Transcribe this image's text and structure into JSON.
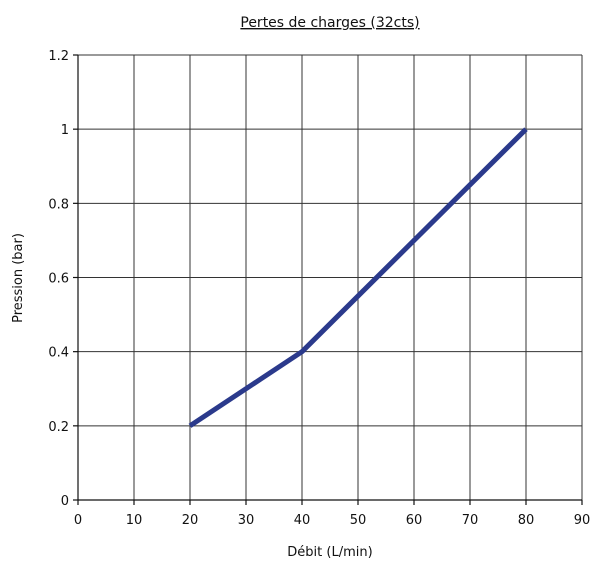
{
  "chart_data": {
    "type": "line",
    "title": "Pertes de charges (32cts)",
    "xlabel": "Débit (L/min)",
    "ylabel": "Pression (bar)",
    "xlim": [
      0,
      90
    ],
    "ylim": [
      0,
      1.2
    ],
    "x_ticks": [
      0,
      10,
      20,
      30,
      40,
      50,
      60,
      70,
      80,
      90
    ],
    "y_ticks": [
      0,
      0.2,
      0.4,
      0.6,
      0.8,
      1,
      1.2
    ],
    "x_tick_labels": [
      "0",
      "10",
      "20",
      "30",
      "40",
      "50",
      "60",
      "70",
      "80",
      "90"
    ],
    "y_tick_labels": [
      "0",
      "0.2",
      "0.4",
      "0.6",
      "0.8",
      "1",
      "1.2"
    ],
    "grid": true,
    "legend": "none",
    "series": [
      {
        "color": "#2b3a8c",
        "x": [
          20,
          40,
          80
        ],
        "y": [
          0.2,
          0.4,
          1.0
        ]
      }
    ]
  }
}
